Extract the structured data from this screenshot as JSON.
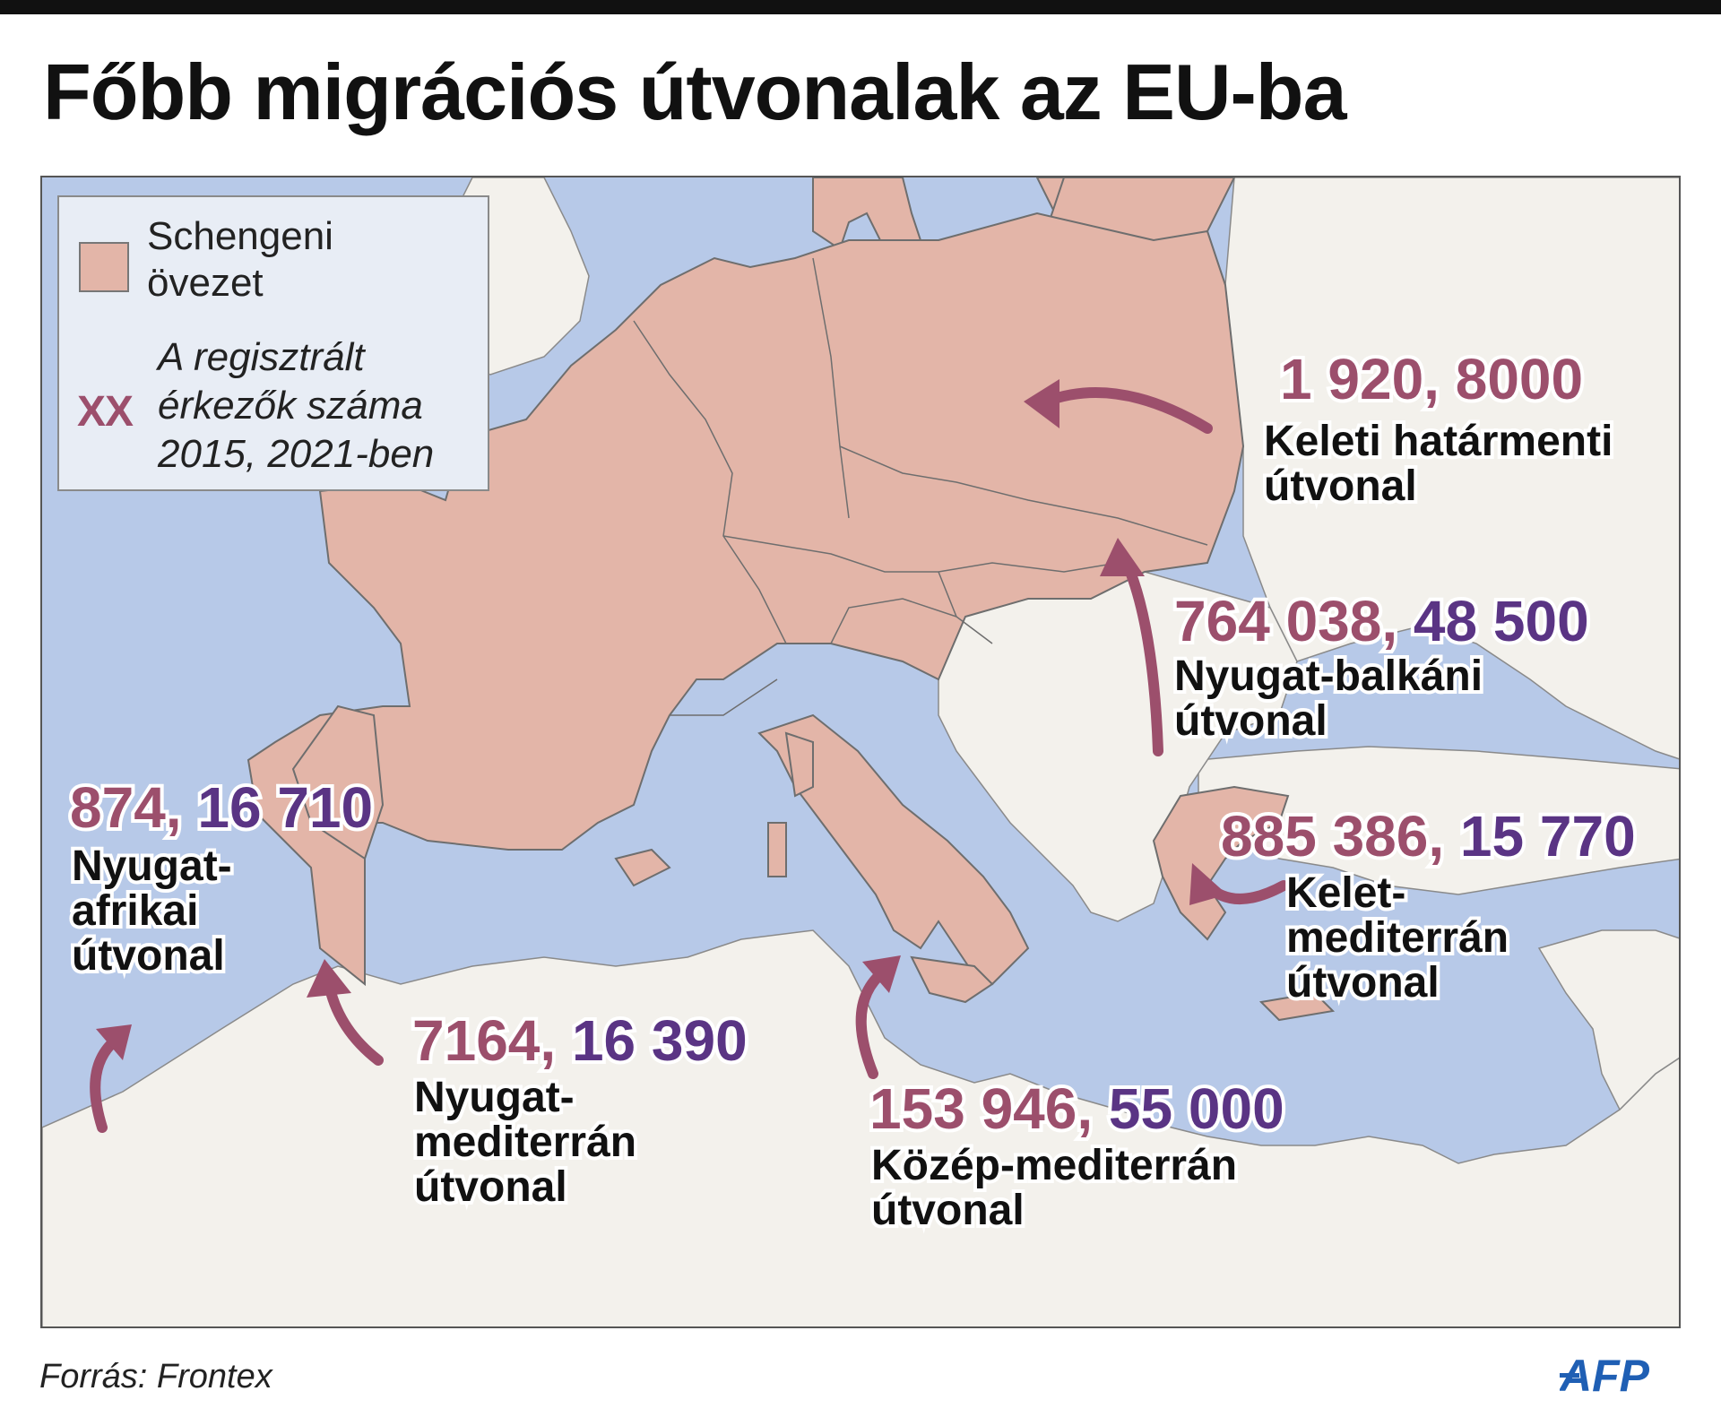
{
  "title": "Főbb migrációs útvonalak az EU-ba",
  "legend": {
    "schengen_label": "Schengeni övezet",
    "marker": "XX",
    "marker_description": "A regisztrált érkezők száma 2015, 2021-ben"
  },
  "routes": [
    {
      "id": "eastern-border",
      "value_2015": "1 920",
      "value_2021": "8000",
      "name": "Keleti határmenti útvonal"
    },
    {
      "id": "western-balkan",
      "value_2015": "764 038",
      "value_2021": "48 500",
      "name": "Nyugat-balkáni útvonal"
    },
    {
      "id": "eastern-med",
      "value_2015": "885 386",
      "value_2021": "15 770",
      "name": "Kelet-mediterrán útvonal"
    },
    {
      "id": "central-med",
      "value_2015": "153 946",
      "value_2021": "55 000",
      "name": "Közép-mediterrán útvonal"
    },
    {
      "id": "western-med",
      "value_2015": "7164",
      "value_2021": "16 390",
      "name": "Nyugat-mediterrán útvonal"
    },
    {
      "id": "west-african",
      "value_2015": "874",
      "value_2021": "16 710",
      "name": "Nyugat-afrikai útvonal"
    }
  ],
  "source": "Forrás: Frontex",
  "logo": "AFP",
  "colors": {
    "sea": "#b7c9e8",
    "land": "#f3f1ec",
    "schengen": "#e3b5a8",
    "border": "#6e6e6e",
    "value_2015": "#9c4f6c",
    "value_2021": "#5a3484",
    "arrow": "#9c4f6c",
    "logo": "#1f5fb4"
  }
}
